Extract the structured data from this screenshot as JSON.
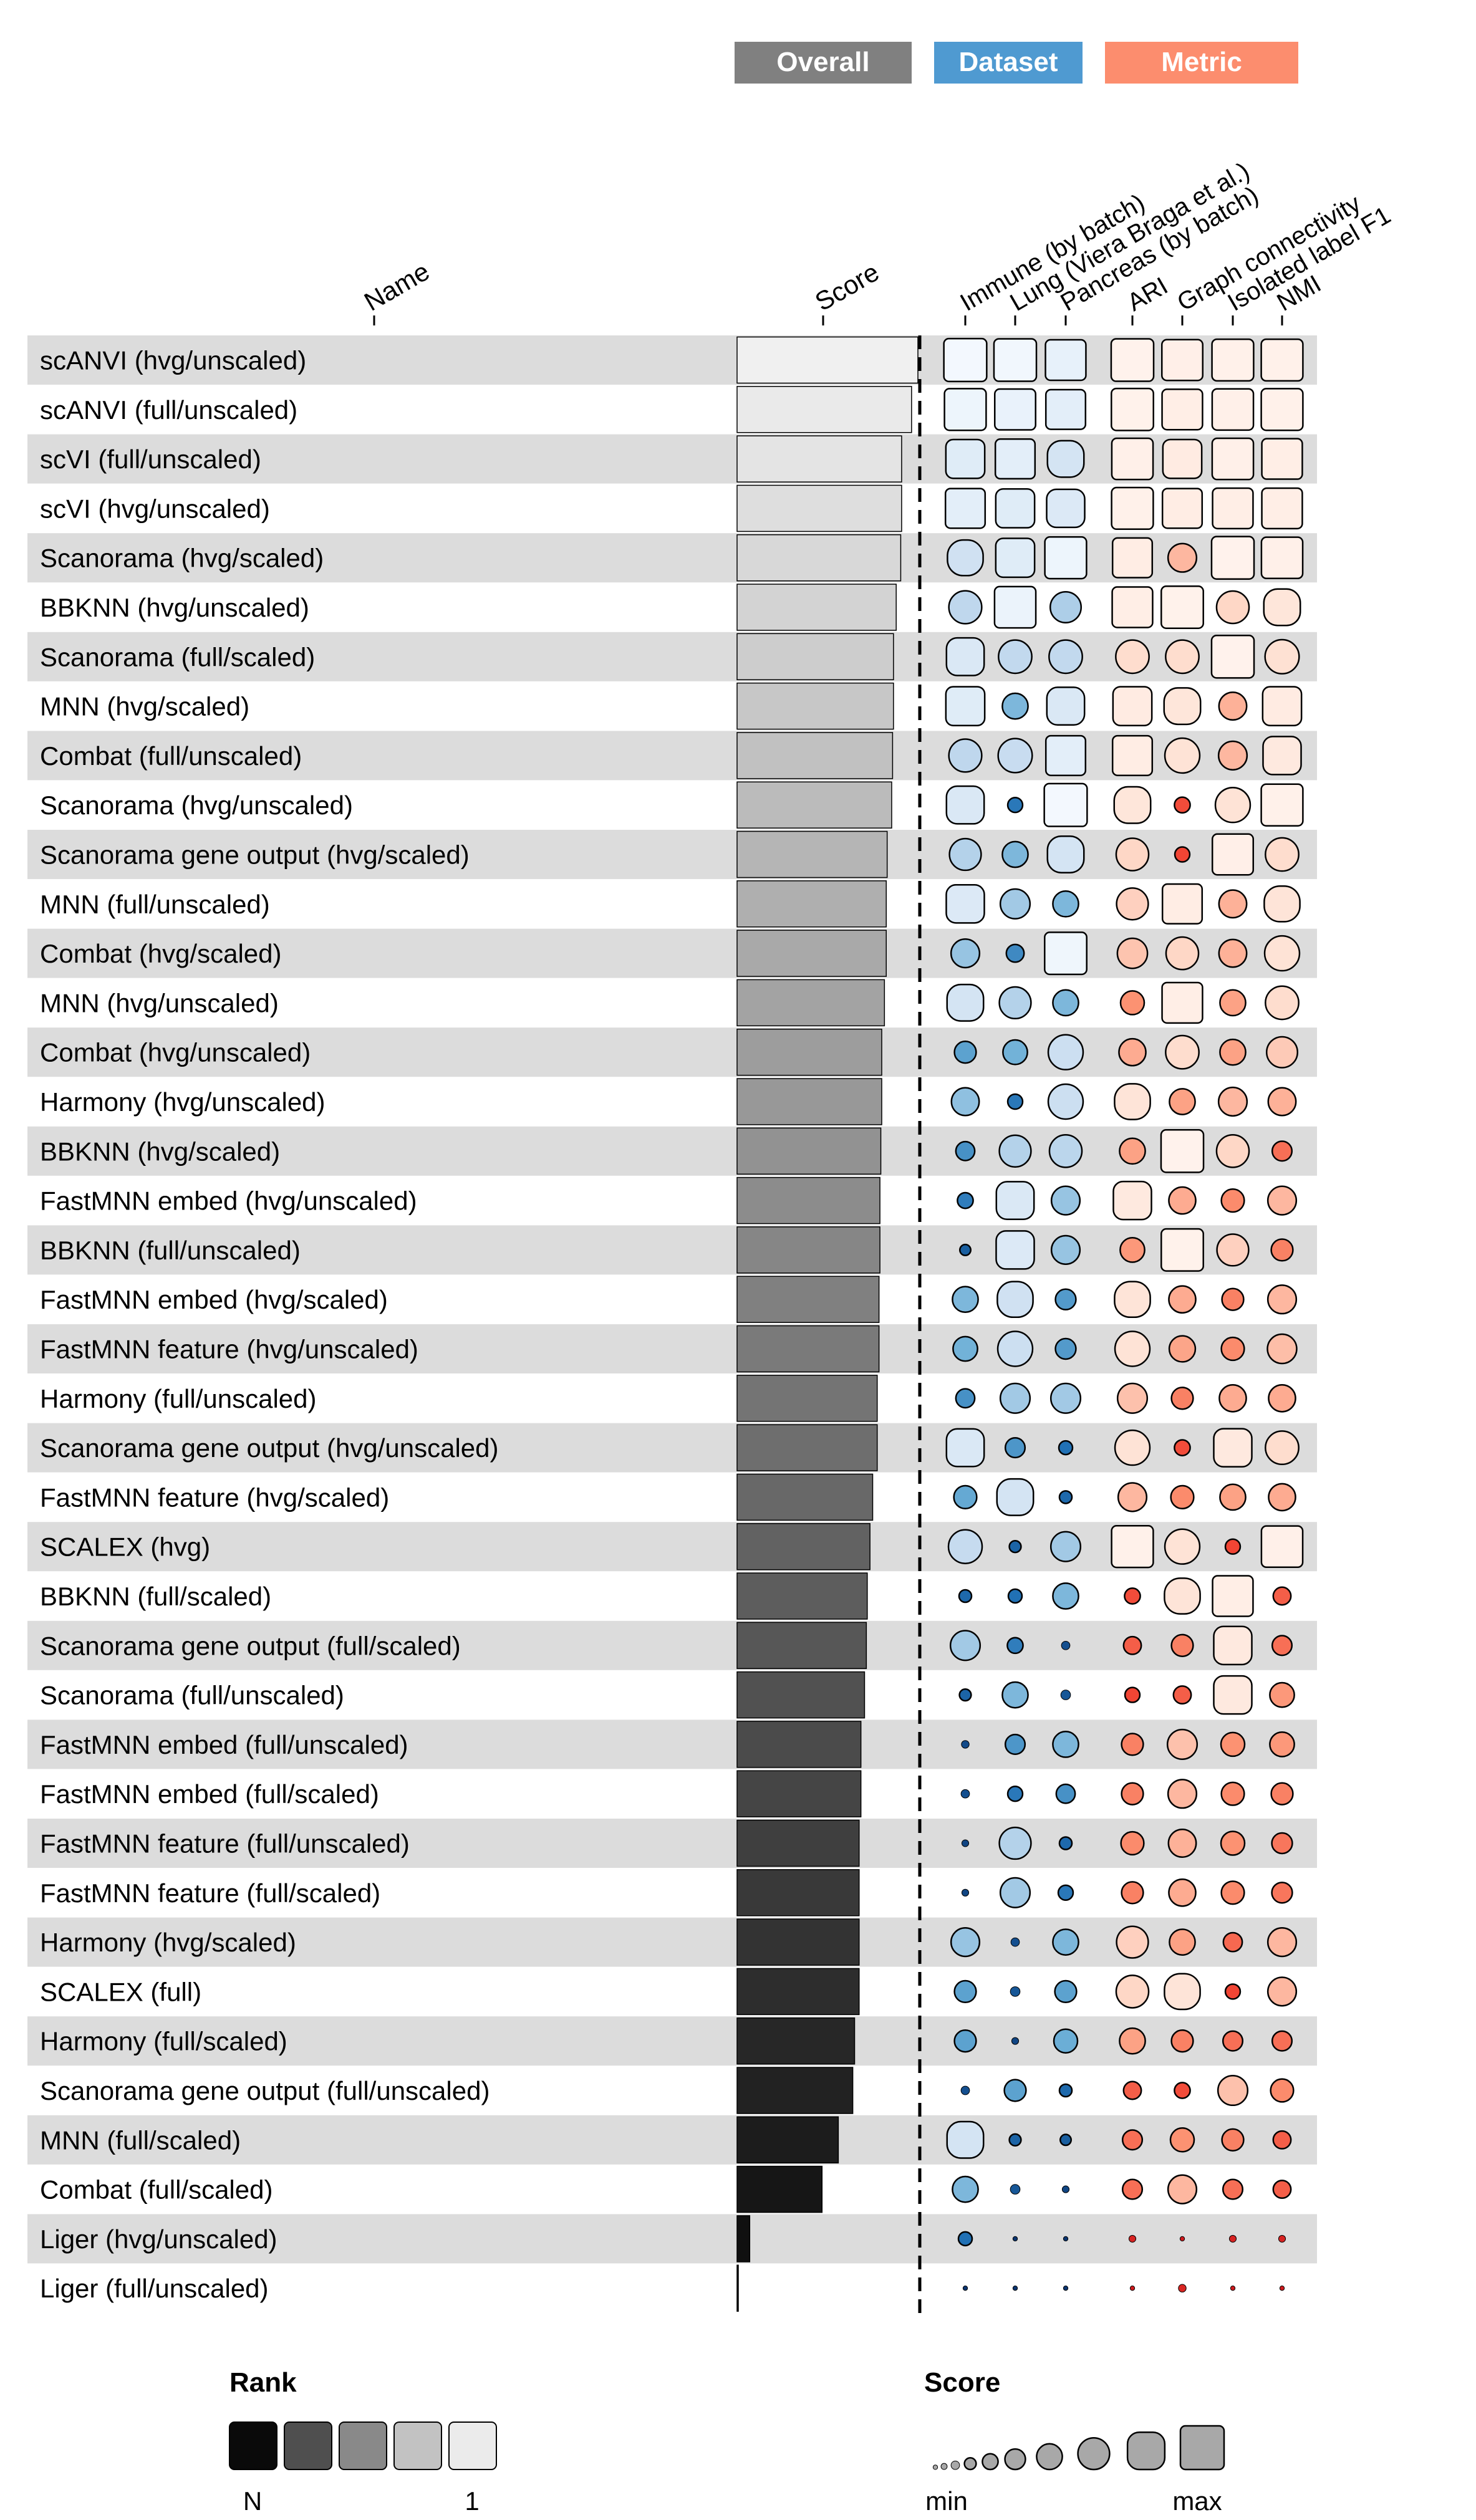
{
  "header": {
    "overall": {
      "label": "Overall",
      "color": "#808080"
    },
    "dataset": {
      "label": "Dataset",
      "color": "#4f9ad1"
    },
    "metric": {
      "label": "Metric",
      "color": "#fc8d6e"
    }
  },
  "columns": {
    "name": "Name",
    "score": "Score",
    "datasets": [
      "Immune (by batch)",
      "Lung (Viera Braga et al.)",
      "Pancreas (by batch)"
    ],
    "metrics": [
      "ARI",
      "Graph connectivity",
      "Isolated label F1",
      "NMI"
    ]
  },
  "legend": {
    "rank_title": "Rank",
    "rank_low": "N",
    "rank_high": "1",
    "score_title": "Score",
    "score_low": "min",
    "score_high": "max"
  },
  "chart_data": {
    "type": "table",
    "score_range": [
      0,
      1
    ],
    "rows": [
      {
        "name": "scANVI (hvg/unscaled)",
        "score": 1.0,
        "datasets": [
          0.98,
          0.97,
          0.92
        ],
        "metrics": [
          0.97,
          0.93,
          0.95,
          0.95
        ]
      },
      {
        "name": "scANVI (full/unscaled)",
        "score": 0.965,
        "datasets": [
          0.95,
          0.93,
          0.9
        ],
        "metrics": [
          0.96,
          0.92,
          0.94,
          0.95
        ]
      },
      {
        "name": "scVI (full/unscaled)",
        "score": 0.91,
        "datasets": [
          0.88,
          0.9,
          0.82
        ],
        "metrics": [
          0.94,
          0.88,
          0.94,
          0.92
        ]
      },
      {
        "name": "scVI (hvg/unscaled)",
        "score": 0.91,
        "datasets": [
          0.9,
          0.88,
          0.86
        ],
        "metrics": [
          0.95,
          0.9,
          0.92,
          0.92
        ]
      },
      {
        "name": "Scanorama (hvg/scaled)",
        "score": 0.905,
        "datasets": [
          0.8,
          0.88,
          0.95
        ],
        "metrics": [
          0.9,
          0.62,
          0.97,
          0.94
        ]
      },
      {
        "name": "BBKNN (hvg/unscaled)",
        "score": 0.88,
        "datasets": [
          0.73,
          0.94,
          0.68
        ],
        "metrics": [
          0.92,
          0.96,
          0.72,
          0.82
        ]
      },
      {
        "name": "Scanorama (full/scaled)",
        "score": 0.865,
        "datasets": [
          0.85,
          0.74,
          0.74
        ],
        "metrics": [
          0.74,
          0.74,
          0.97,
          0.76
        ]
      },
      {
        "name": "MNN (hvg/scaled)",
        "score": 0.865,
        "datasets": [
          0.88,
          0.55,
          0.85
        ],
        "metrics": [
          0.88,
          0.82,
          0.6,
          0.88
        ]
      },
      {
        "name": "Combat (full/unscaled)",
        "score": 0.86,
        "datasets": [
          0.73,
          0.76,
          0.9
        ],
        "metrics": [
          0.9,
          0.78,
          0.62,
          0.86
        ]
      },
      {
        "name": "Scanorama (hvg/unscaled)",
        "score": 0.855,
        "datasets": [
          0.85,
          0.28,
          0.98
        ],
        "metrics": [
          0.82,
          0.3,
          0.78,
          0.95
        ]
      },
      {
        "name": "Scanorama gene output (hvg/scaled)",
        "score": 0.83,
        "datasets": [
          0.7,
          0.55,
          0.82
        ],
        "metrics": [
          0.72,
          0.28,
          0.93,
          0.74
        ]
      },
      {
        "name": "MNN (full/unscaled)",
        "score": 0.825,
        "datasets": [
          0.86,
          0.65,
          0.55
        ],
        "metrics": [
          0.7,
          0.9,
          0.6,
          0.8
        ]
      },
      {
        "name": "Combat (hvg/scaled)",
        "score": 0.825,
        "datasets": [
          0.62,
          0.35,
          0.96
        ],
        "metrics": [
          0.66,
          0.72,
          0.6,
          0.78
        ]
      },
      {
        "name": "MNN (hvg/unscaled)",
        "score": 0.815,
        "datasets": [
          0.82,
          0.7,
          0.55
        ],
        "metrics": [
          0.5,
          0.92,
          0.55,
          0.74
        ]
      },
      {
        "name": "Combat (hvg/unscaled)",
        "score": 0.8,
        "datasets": [
          0.45,
          0.52,
          0.78
        ],
        "metrics": [
          0.58,
          0.74,
          0.55,
          0.68
        ]
      },
      {
        "name": "Harmony (hvg/unscaled)",
        "score": 0.8,
        "datasets": [
          0.6,
          0.28,
          0.78
        ],
        "metrics": [
          0.8,
          0.55,
          0.62,
          0.6
        ]
      },
      {
        "name": "BBKNN (hvg/scaled)",
        "score": 0.795,
        "datasets": [
          0.38,
          0.7,
          0.72
        ],
        "metrics": [
          0.55,
          0.97,
          0.72,
          0.4
        ]
      },
      {
        "name": "FastMNN embed (hvg/unscaled)",
        "score": 0.79,
        "datasets": [
          0.3,
          0.85,
          0.62
        ],
        "metrics": [
          0.86,
          0.58,
          0.48,
          0.62
        ]
      },
      {
        "name": "BBKNN (full/unscaled)",
        "score": 0.79,
        "datasets": [
          0.18,
          0.86,
          0.62
        ],
        "metrics": [
          0.52,
          0.96,
          0.7,
          0.45
        ]
      },
      {
        "name": "FastMNN embed (hvg/scaled)",
        "score": 0.785,
        "datasets": [
          0.55,
          0.8,
          0.42
        ],
        "metrics": [
          0.8,
          0.58,
          0.45,
          0.62
        ]
      },
      {
        "name": "FastMNN feature (hvg/unscaled)",
        "score": 0.785,
        "datasets": [
          0.52,
          0.78,
          0.42
        ],
        "metrics": [
          0.78,
          0.56,
          0.48,
          0.64
        ]
      },
      {
        "name": "Harmony (full/unscaled)",
        "score": 0.775,
        "datasets": [
          0.38,
          0.65,
          0.65
        ],
        "metrics": [
          0.65,
          0.45,
          0.58,
          0.58
        ]
      },
      {
        "name": "Scanorama gene output (hvg/unscaled)",
        "score": 0.775,
        "datasets": [
          0.85,
          0.4,
          0.25
        ],
        "metrics": [
          0.78,
          0.3,
          0.86,
          0.74
        ]
      },
      {
        "name": "FastMNN feature (hvg/scaled)",
        "score": 0.75,
        "datasets": [
          0.48,
          0.82,
          0.22
        ],
        "metrics": [
          0.62,
          0.48,
          0.55,
          0.58
        ]
      },
      {
        "name": "SCALEX (hvg)",
        "score": 0.735,
        "datasets": [
          0.75,
          0.2,
          0.65
        ],
        "metrics": [
          0.95,
          0.78,
          0.28,
          0.94
        ]
      },
      {
        "name": "BBKNN (full/scaled)",
        "score": 0.72,
        "datasets": [
          0.22,
          0.25,
          0.55
        ],
        "metrics": [
          0.3,
          0.8,
          0.92,
          0.35
        ]
      },
      {
        "name": "Scanorama gene output (full/scaled)",
        "score": 0.715,
        "datasets": [
          0.65,
          0.3,
          0.12
        ],
        "metrics": [
          0.35,
          0.45,
          0.86,
          0.4
        ]
      },
      {
        "name": "Scanorama (full/unscaled)",
        "score": 0.705,
        "datasets": [
          0.2,
          0.55,
          0.15
        ],
        "metrics": [
          0.28,
          0.35,
          0.86,
          0.52
        ]
      },
      {
        "name": "FastMNN embed (full/unscaled)",
        "score": 0.685,
        "datasets": [
          0.1,
          0.4,
          0.55
        ],
        "metrics": [
          0.45,
          0.65,
          0.5,
          0.52
        ]
      },
      {
        "name": "FastMNN embed (full/scaled)",
        "score": 0.685,
        "datasets": [
          0.12,
          0.28,
          0.38
        ],
        "metrics": [
          0.45,
          0.62,
          0.48,
          0.45
        ]
      },
      {
        "name": "FastMNN feature (full/unscaled)",
        "score": 0.675,
        "datasets": [
          0.08,
          0.7,
          0.22
        ],
        "metrics": [
          0.48,
          0.6,
          0.5,
          0.42
        ]
      },
      {
        "name": "FastMNN feature (full/scaled)",
        "score": 0.675,
        "datasets": [
          0.08,
          0.65,
          0.28
        ],
        "metrics": [
          0.45,
          0.58,
          0.48,
          0.42
        ]
      },
      {
        "name": "Harmony (hvg/scaled)",
        "score": 0.675,
        "datasets": [
          0.62,
          0.12,
          0.55
        ],
        "metrics": [
          0.7,
          0.55,
          0.38,
          0.62
        ]
      },
      {
        "name": "SCALEX (full)",
        "score": 0.675,
        "datasets": [
          0.45,
          0.15,
          0.45
        ],
        "metrics": [
          0.72,
          0.8,
          0.28,
          0.62
        ]
      },
      {
        "name": "Harmony (full/scaled)",
        "score": 0.65,
        "datasets": [
          0.45,
          0.08,
          0.5
        ],
        "metrics": [
          0.55,
          0.45,
          0.4,
          0.4
        ]
      },
      {
        "name": "Scanorama gene output (full/unscaled)",
        "score": 0.64,
        "datasets": [
          0.12,
          0.45,
          0.22
        ],
        "metrics": [
          0.35,
          0.3,
          0.65,
          0.48
        ]
      },
      {
        "name": "MNN (full/scaled)",
        "score": 0.56,
        "datasets": [
          0.82,
          0.2,
          0.18
        ],
        "metrics": [
          0.4,
          0.5,
          0.45,
          0.35
        ]
      },
      {
        "name": "Combat (full/scaled)",
        "score": 0.47,
        "datasets": [
          0.55,
          0.15,
          0.08
        ],
        "metrics": [
          0.4,
          0.62,
          0.4,
          0.35
        ]
      },
      {
        "name": "Liger (hvg/unscaled)",
        "score": 0.07,
        "datasets": [
          0.25,
          0.02,
          0.02
        ],
        "metrics": [
          0.08,
          0.02,
          0.08,
          0.08
        ]
      },
      {
        "name": "Liger (full/unscaled)",
        "score": 0.0,
        "datasets": [
          0.02,
          0.02,
          0.02
        ],
        "metrics": [
          0.02,
          0.1,
          0.02,
          0.02
        ]
      }
    ]
  }
}
